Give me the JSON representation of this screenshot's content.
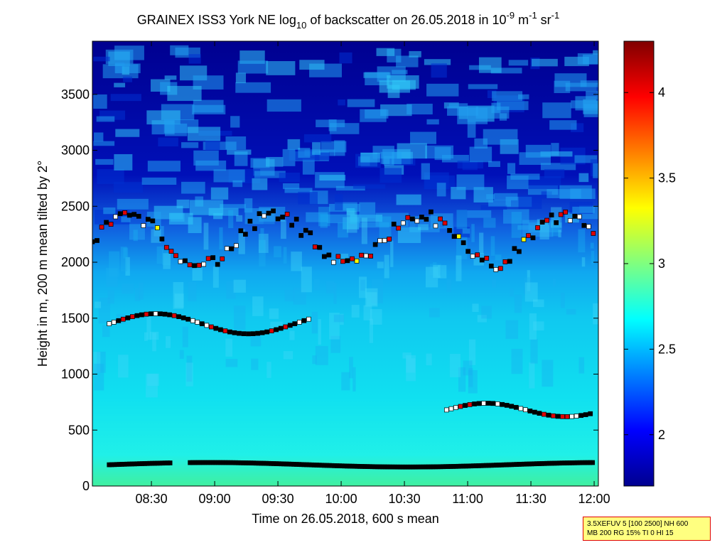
{
  "chart_data": {
    "type": "heatmap",
    "title": {
      "prefix": "GRAINEX ISS3 York NE log",
      "sub": "10",
      "mid": " of backscatter on 26.05.2018 in 10",
      "sup1": "-9",
      "m": " m",
      "sup2": "-1",
      "sr": " sr",
      "sup3": "-1"
    },
    "xlabel": "Time on 26.05.2018, 600 s mean",
    "ylabel": "Height in m, 200 m mean tilted by 2°",
    "x_ticks": [
      "08:30",
      "09:00",
      "09:30",
      "10:00",
      "10:30",
      "11:00",
      "11:30",
      "12:00"
    ],
    "x_range": [
      "08:02",
      "12:02"
    ],
    "y_ticks": [
      "0",
      "500",
      "1000",
      "1500",
      "2000",
      "2500",
      "3000",
      "3500"
    ],
    "ylim": [
      0,
      3975
    ],
    "colorbar": {
      "ticks": [
        "2",
        "2.5",
        "3",
        "3.5",
        "4"
      ],
      "range": [
        1.7,
        4.3
      ],
      "colormap": "jet"
    },
    "colors": {
      "frame": "#000000",
      "marker_white": "#ffffff",
      "marker_black": "#000000",
      "marker_red": "#e00000",
      "marker_yellow": "#ffff00",
      "marker_magenta": "#ff00ff",
      "marker_cyan": "#00e0e0"
    },
    "layers_approx": [
      {
        "name": "surface layer",
        "start": "08:10",
        "end": "12:00",
        "height_m": 190
      },
      {
        "name": "layer ~1450 m",
        "start": "08:10",
        "end": "09:45",
        "height_m": 1450
      },
      {
        "name": "layer ~650 m",
        "start": "10:50",
        "end": "12:00",
        "height_m": 680
      },
      {
        "name": "upper layer",
        "start": "08:02",
        "end": "12:00",
        "height_m": 2200
      }
    ]
  },
  "settings_box": {
    "line1": "3.5XEFUV 5 [100 2500] NH 600",
    "line2": "MB 200 RG 15% TI 0 HI 15"
  }
}
